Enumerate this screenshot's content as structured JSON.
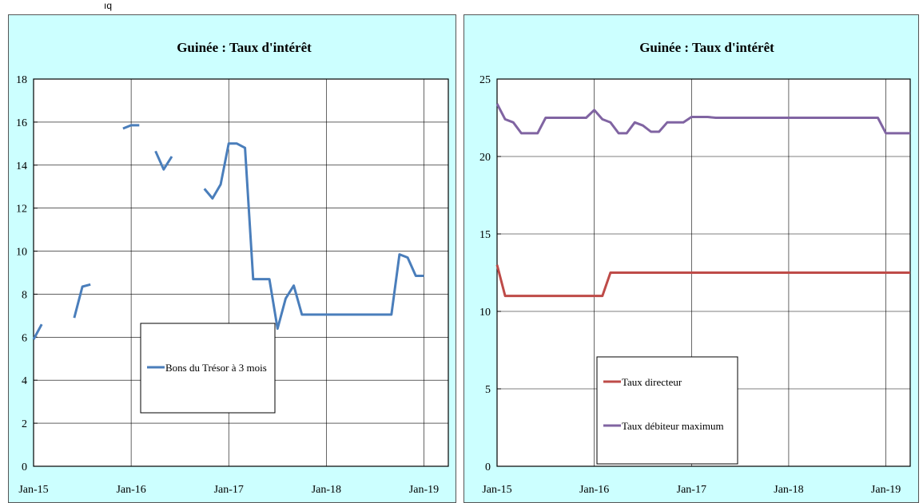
{
  "fragment_label": "ıq",
  "chart_data": [
    {
      "type": "line",
      "title": "Guinée : Taux d'intérêt",
      "xlabel": "",
      "ylabel": "",
      "ylim": [
        0,
        18
      ],
      "y_ticks": [
        "0",
        "2",
        "4",
        "6",
        "8",
        "10",
        "12",
        "14",
        "16",
        "18"
      ],
      "x_ticks": [
        "Jan-15",
        "Jan-16",
        "Jan-17",
        "Jan-18",
        "Jan-19"
      ],
      "x_range_months": [
        0,
        51
      ],
      "grid": true,
      "legend_position": "center",
      "series": [
        {
          "name": "Bons du Trésor à 3 mois",
          "color": "#4a7ebb",
          "segments": [
            [
              [
                0,
                5.9
              ],
              [
                1,
                6.6
              ]
            ],
            [
              [
                5,
                6.9
              ],
              [
                6,
                8.35
              ],
              [
                7,
                8.45
              ]
            ],
            [
              [
                11,
                15.7
              ],
              [
                12,
                15.85
              ],
              [
                13,
                15.85
              ]
            ],
            [
              [
                15,
                14.65
              ],
              [
                16,
                13.8
              ],
              [
                17,
                14.4
              ]
            ],
            [
              [
                21,
                12.9
              ],
              [
                22,
                12.45
              ],
              [
                23,
                13.1
              ],
              [
                24,
                15.0
              ],
              [
                25,
                15.0
              ],
              [
                26,
                14.8
              ],
              [
                27,
                8.7
              ],
              [
                28,
                8.7
              ],
              [
                29,
                8.7
              ],
              [
                30,
                6.4
              ],
              [
                31,
                7.8
              ],
              [
                32,
                8.4
              ],
              [
                33,
                7.05
              ],
              [
                34,
                7.05
              ],
              [
                35,
                7.05
              ],
              [
                36,
                7.05
              ],
              [
                37,
                7.05
              ],
              [
                38,
                7.05
              ],
              [
                39,
                7.05
              ],
              [
                40,
                7.05
              ],
              [
                41,
                7.05
              ],
              [
                42,
                7.05
              ],
              [
                43,
                7.05
              ],
              [
                44,
                7.05
              ],
              [
                45,
                9.85
              ],
              [
                46,
                9.7
              ],
              [
                47,
                8.85
              ],
              [
                48,
                8.85
              ]
            ]
          ]
        }
      ]
    },
    {
      "type": "line",
      "title": "Guinée : Taux d'intérêt",
      "xlabel": "",
      "ylabel": "",
      "ylim": [
        0,
        25
      ],
      "y_ticks": [
        "0",
        "5",
        "10",
        "15",
        "20",
        "25"
      ],
      "x_ticks": [
        "Jan-15",
        "Jan-16",
        "Jan-17",
        "Jan-18",
        "Jan-19"
      ],
      "x_range_months": [
        0,
        51
      ],
      "grid": true,
      "legend_position": "bottom-center",
      "series": [
        {
          "name": "Taux   directeur",
          "color": "#be4b48",
          "segments": [
            [
              [
                0,
                13.0
              ],
              [
                1,
                11.0
              ],
              [
                2,
                11.0
              ],
              [
                3,
                11.0
              ],
              [
                4,
                11.0
              ],
              [
                5,
                11.0
              ],
              [
                6,
                11.0
              ],
              [
                7,
                11.0
              ],
              [
                8,
                11.0
              ],
              [
                9,
                11.0
              ],
              [
                10,
                11.0
              ],
              [
                11,
                11.0
              ],
              [
                12,
                11.0
              ],
              [
                13,
                11.0
              ],
              [
                14,
                12.5
              ],
              [
                15,
                12.5
              ],
              [
                16,
                12.5
              ],
              [
                17,
                12.5
              ],
              [
                18,
                12.5
              ],
              [
                19,
                12.5
              ],
              [
                20,
                12.5
              ],
              [
                21,
                12.5
              ],
              [
                22,
                12.5
              ],
              [
                23,
                12.5
              ],
              [
                24,
                12.5
              ],
              [
                25,
                12.5
              ],
              [
                26,
                12.5
              ],
              [
                27,
                12.5
              ],
              [
                28,
                12.5
              ],
              [
                29,
                12.5
              ],
              [
                30,
                12.5
              ],
              [
                31,
                12.5
              ],
              [
                32,
                12.5
              ],
              [
                33,
                12.5
              ],
              [
                34,
                12.5
              ],
              [
                35,
                12.5
              ],
              [
                36,
                12.5
              ],
              [
                37,
                12.5
              ],
              [
                38,
                12.5
              ],
              [
                39,
                12.5
              ],
              [
                40,
                12.5
              ],
              [
                41,
                12.5
              ],
              [
                42,
                12.5
              ],
              [
                43,
                12.5
              ],
              [
                44,
                12.5
              ],
              [
                45,
                12.5
              ],
              [
                46,
                12.5
              ],
              [
                47,
                12.5
              ],
              [
                48,
                12.5
              ],
              [
                49,
                12.5
              ],
              [
                50,
                12.5
              ],
              [
                51,
                12.5
              ]
            ]
          ]
        },
        {
          "name": "Taux débiteur maximum",
          "color": "#8064a2",
          "segments": [
            [
              [
                0,
                23.4
              ],
              [
                1,
                22.4
              ],
              [
                2,
                22.2
              ],
              [
                3,
                21.5
              ],
              [
                4,
                21.5
              ],
              [
                5,
                21.5
              ],
              [
                6,
                22.5
              ],
              [
                7,
                22.5
              ],
              [
                8,
                22.5
              ],
              [
                9,
                22.5
              ],
              [
                10,
                22.5
              ],
              [
                11,
                22.5
              ],
              [
                12,
                23.0
              ],
              [
                13,
                22.4
              ],
              [
                14,
                22.2
              ],
              [
                15,
                21.5
              ],
              [
                16,
                21.5
              ],
              [
                17,
                22.2
              ],
              [
                18,
                22.0
              ],
              [
                19,
                21.6
              ],
              [
                20,
                21.6
              ],
              [
                21,
                22.2
              ],
              [
                22,
                22.2
              ],
              [
                23,
                22.2
              ],
              [
                24,
                22.55
              ],
              [
                25,
                22.55
              ],
              [
                26,
                22.55
              ],
              [
                27,
                22.5
              ],
              [
                28,
                22.5
              ],
              [
                29,
                22.5
              ],
              [
                30,
                22.5
              ],
              [
                31,
                22.5
              ],
              [
                32,
                22.5
              ],
              [
                33,
                22.5
              ],
              [
                34,
                22.5
              ],
              [
                35,
                22.5
              ],
              [
                36,
                22.5
              ],
              [
                37,
                22.5
              ],
              [
                38,
                22.5
              ],
              [
                39,
                22.5
              ],
              [
                40,
                22.5
              ],
              [
                41,
                22.5
              ],
              [
                42,
                22.5
              ],
              [
                43,
                22.5
              ],
              [
                44,
                22.5
              ],
              [
                45,
                22.5
              ],
              [
                46,
                22.5
              ],
              [
                47,
                22.5
              ],
              [
                48,
                21.5
              ],
              [
                49,
                21.5
              ],
              [
                50,
                21.5
              ],
              [
                51,
                21.5
              ]
            ]
          ]
        }
      ]
    }
  ]
}
